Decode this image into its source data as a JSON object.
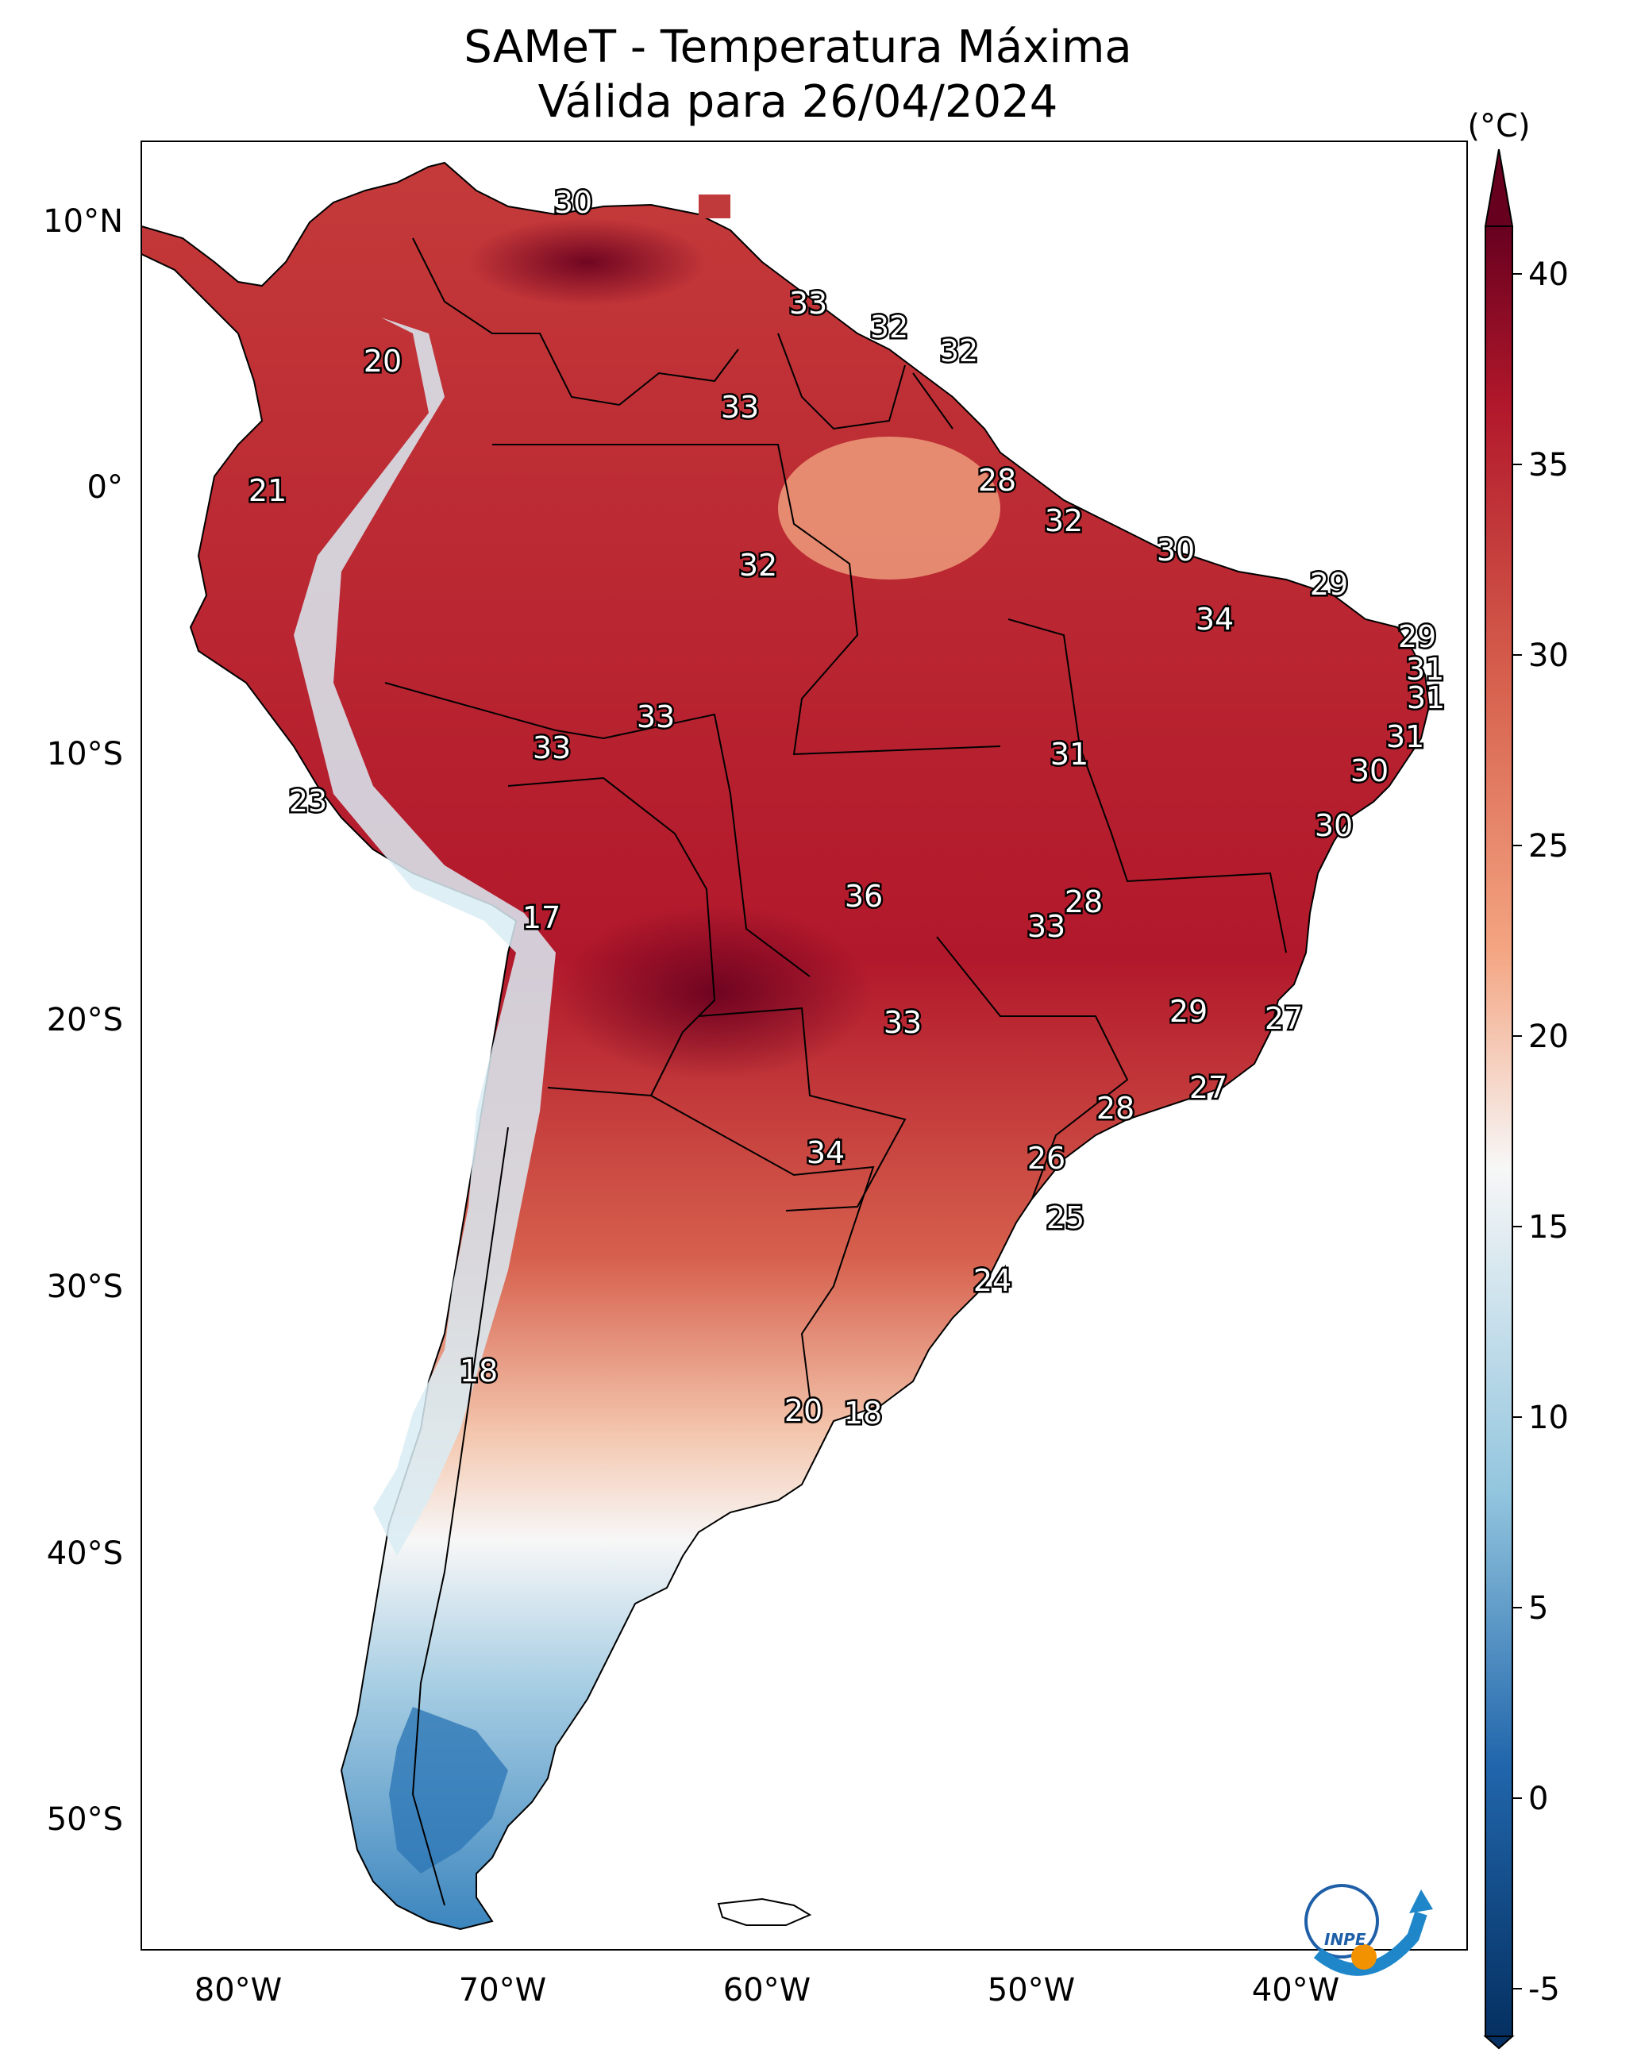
{
  "title": {
    "line1": "SAMeT - Temperatura Máxima",
    "line2": "Válida para 26/04/2024"
  },
  "colorbar": {
    "unit": "(°C)",
    "min": -5,
    "max": 40,
    "ticks": [
      "40",
      "35",
      "30",
      "25",
      "20",
      "15",
      "10",
      "5",
      "0",
      "-5"
    ],
    "colors": {
      "cold": "#053061",
      "cool": "#2166ac",
      "mild_cool": "#92c5de",
      "neutral": "#f7f7f7",
      "mild_warm": "#f4a582",
      "warm": "#d6604d",
      "hot": "#b2182b",
      "very_hot": "#67001f"
    }
  },
  "axes": {
    "lat_labels": [
      "10°N",
      "0°",
      "10°S",
      "20°S",
      "30°S",
      "40°S",
      "50°S"
    ],
    "lon_labels": [
      "80°W",
      "70°W",
      "60°W",
      "50°W",
      "40°W"
    ]
  },
  "city_labels": [
    {
      "id": "label-30-venezuela",
      "value": "30"
    },
    {
      "id": "label-33-guyana",
      "value": "33"
    },
    {
      "id": "label-32-suriname",
      "value": "32"
    },
    {
      "id": "label-32-french-guiana",
      "value": "32"
    },
    {
      "id": "label-20-colombia",
      "value": "20"
    },
    {
      "id": "label-33-roraima",
      "value": "33"
    },
    {
      "id": "label-21-ecuador",
      "value": "21"
    },
    {
      "id": "label-28-amapa",
      "value": "28"
    },
    {
      "id": "label-32-para-north",
      "value": "32"
    },
    {
      "id": "label-30-maranhao",
      "value": "30"
    },
    {
      "id": "label-32-amazonas",
      "value": "32"
    },
    {
      "id": "label-29-ceara",
      "value": "29"
    },
    {
      "id": "label-34-piaui",
      "value": "34"
    },
    {
      "id": "label-29-rn",
      "value": "29"
    },
    {
      "id": "label-31-paraiba",
      "value": "31"
    },
    {
      "id": "label-31-pernambuco",
      "value": "31"
    },
    {
      "id": "label-33-rondonia",
      "value": "33"
    },
    {
      "id": "label-33-acre",
      "value": "33"
    },
    {
      "id": "label-31-alagoas",
      "value": "31"
    },
    {
      "id": "label-31-tocantins",
      "value": "31"
    },
    {
      "id": "label-30-sergipe",
      "value": "30"
    },
    {
      "id": "label-23-peru",
      "value": "23"
    },
    {
      "id": "label-30-bahia",
      "value": "30"
    },
    {
      "id": "label-36-mato-grosso",
      "value": "36"
    },
    {
      "id": "label-28-goias",
      "value": "28"
    },
    {
      "id": "label-17-bolivia",
      "value": "17"
    },
    {
      "id": "label-33-goias",
      "value": "33"
    },
    {
      "id": "label-29-minas",
      "value": "29"
    },
    {
      "id": "label-27-espirito-santo",
      "value": "27"
    },
    {
      "id": "label-33-ms",
      "value": "33"
    },
    {
      "id": "label-27-rio",
      "value": "27"
    },
    {
      "id": "label-28-sao-paulo",
      "value": "28"
    },
    {
      "id": "label-34-paraguay",
      "value": "34"
    },
    {
      "id": "label-26-parana",
      "value": "26"
    },
    {
      "id": "label-25-santa-catarina",
      "value": "25"
    },
    {
      "id": "label-24-rio-grande-do-sul",
      "value": "24"
    },
    {
      "id": "label-18-chile",
      "value": "18"
    },
    {
      "id": "label-20-buenos-aires",
      "value": "20"
    },
    {
      "id": "label-18-montevideo",
      "value": "18"
    }
  ],
  "logo": {
    "text": "INPE"
  }
}
